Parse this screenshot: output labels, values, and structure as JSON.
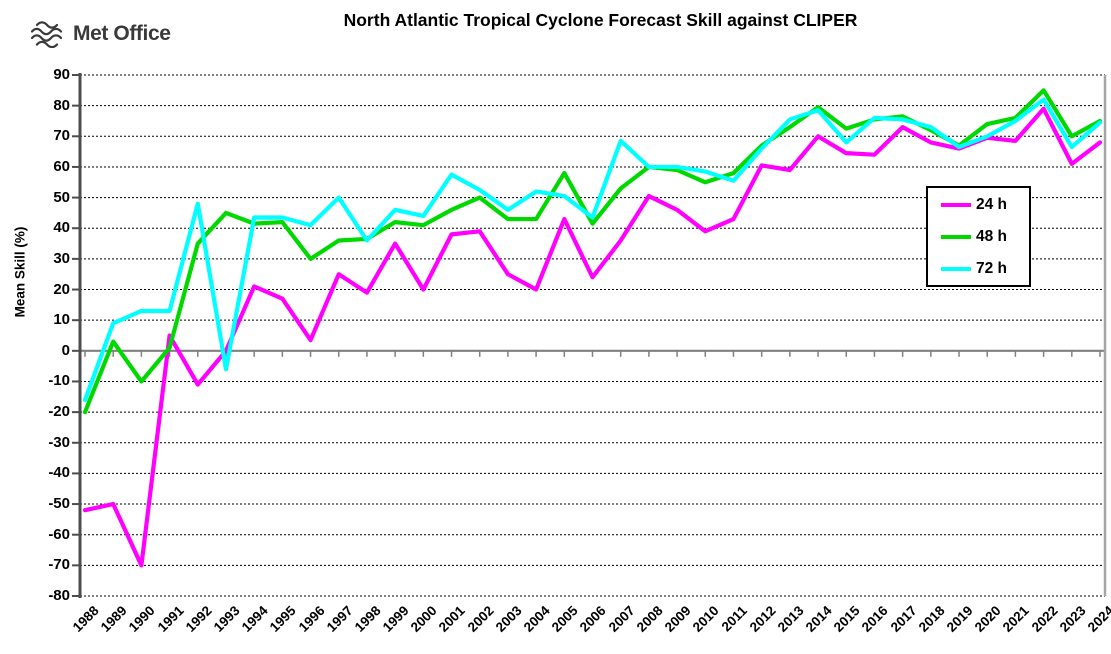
{
  "header": {
    "logo_text": "Met Office"
  },
  "chart_data": {
    "type": "line",
    "title": "North Atlantic Tropical Cyclone Forecast Skill against CLIPER",
    "xlabel": "",
    "ylabel": "Mean Skill (%)",
    "ylim": [
      -80,
      90
    ],
    "yticks": [
      90,
      80,
      70,
      60,
      50,
      40,
      30,
      20,
      10,
      0,
      -10,
      -20,
      -30,
      -40,
      -50,
      -60,
      -70,
      -80
    ],
    "grid": "horizontal-dotted",
    "legend_position": "middle-right",
    "background_color": "#ffffff",
    "categories": [
      "1988",
      "1989",
      "1990",
      "1991",
      "1992",
      "1993",
      "1994",
      "1995",
      "1996",
      "1997",
      "1998",
      "1999",
      "2000",
      "2001",
      "2002",
      "2003",
      "2004",
      "2005",
      "2006",
      "2007",
      "2008",
      "2009",
      "2010",
      "2011",
      "2012",
      "2013",
      "2014",
      "2015",
      "2016",
      "2017",
      "2018",
      "2019",
      "2020",
      "2021",
      "2022",
      "2023",
      "2024"
    ],
    "series": [
      {
        "name": "24 h",
        "color": "#FF00FF",
        "values": [
          -52,
          -50,
          -70,
          5,
          -11,
          0,
          21,
          17,
          3.5,
          25,
          19,
          35,
          20,
          38,
          39,
          25,
          20,
          43,
          24,
          36,
          50.5,
          46,
          39,
          43,
          60.5,
          59,
          70,
          64.5,
          64,
          73,
          68,
          66,
          69.5,
          68.5,
          79,
          61,
          68
        ]
      },
      {
        "name": "48 h",
        "color": "#00D900",
        "values": [
          -20,
          3,
          -10,
          1,
          35,
          45,
          41.5,
          42,
          30,
          36,
          36.5,
          42,
          41,
          46,
          50,
          43,
          43,
          58,
          41.5,
          53,
          60,
          59,
          55,
          58,
          67,
          73,
          79.5,
          72.5,
          75.5,
          76.5,
          72,
          67,
          74,
          76,
          85,
          70,
          75
        ]
      },
      {
        "name": "72 h",
        "color": "#00FFFF",
        "values": [
          -16,
          9,
          13,
          13,
          48,
          -6,
          43.5,
          43.5,
          41,
          50,
          36,
          46,
          44,
          57.5,
          52.5,
          46,
          52,
          50.5,
          43.5,
          68.5,
          60,
          60,
          58.5,
          55.5,
          66,
          75.5,
          78.5,
          68,
          76,
          75.5,
          73,
          66.5,
          70,
          75,
          82,
          66.5,
          74.5
        ]
      }
    ],
    "axis_colors": {
      "gridline": "#000000",
      "zero_axis": "#808080",
      "left_axis": "#4d4d4d",
      "right_border": "#a6a6a6"
    }
  }
}
